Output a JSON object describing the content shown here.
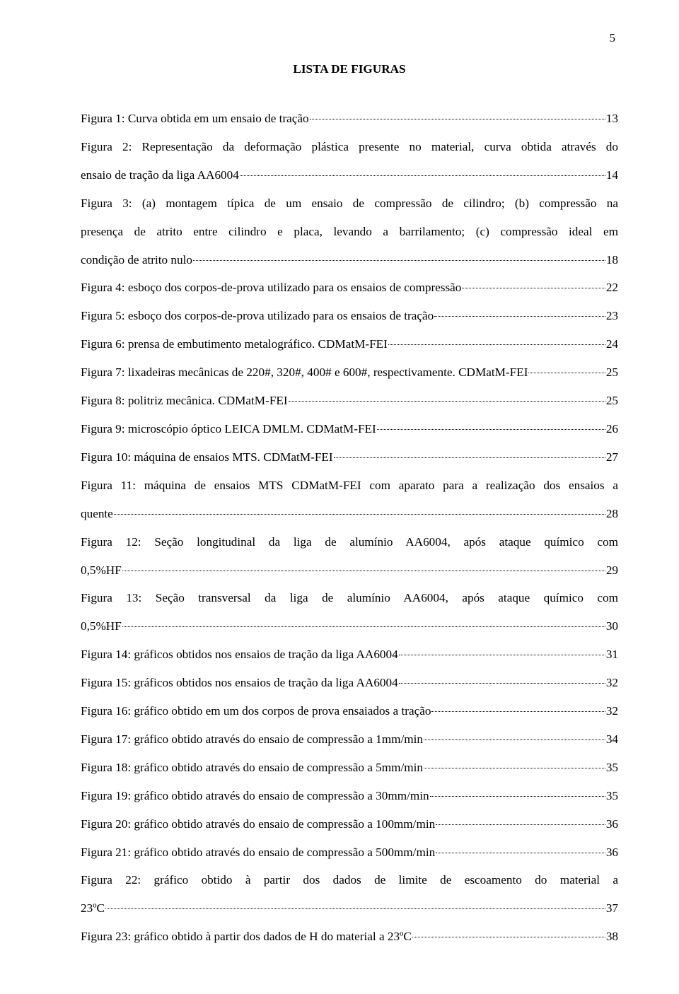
{
  "page_number": "5",
  "title": "LISTA DE FIGURAS",
  "entries": [
    {
      "pre": "Figura 1: Curva obtida em um ensaio de tração",
      "page": "13",
      "multi": false
    },
    {
      "pre_lines": [
        "Figura 2: Representação da deformação plástica presente no material, curva obtida através do"
      ],
      "last": "ensaio de tração da liga AA6004",
      "page": "14",
      "multi": true
    },
    {
      "pre_lines": [
        "Figura 3: (a) montagem típica de um ensaio de compressão de cilindro; (b) compressão na",
        "presença de atrito entre cilindro e placa, levando a barrilamento; (c) compressão ideal em"
      ],
      "last": "condição de atrito nulo",
      "page": "18",
      "multi": true
    },
    {
      "pre": "Figura 4: esboço dos corpos-de-prova utilizado para os ensaios de compressão",
      "page": "22",
      "multi": false
    },
    {
      "pre": "Figura 5: esboço dos corpos-de-prova utilizado para os ensaios de tração",
      "page": "23",
      "multi": false
    },
    {
      "pre": "Figura 6: prensa de embutimento metalográfico. CDMatM-FEI",
      "page": "24",
      "multi": false
    },
    {
      "pre": "Figura 7: lixadeiras mecânicas de 220#, 320#, 400# e 600#, respectivamente. CDMatM-FEI",
      "page": "25",
      "multi": false
    },
    {
      "pre": "Figura 8: politriz mecânica. CDMatM-FEI",
      "page": "25",
      "multi": false
    },
    {
      "pre": "Figura 9: microscópio óptico LEICA DMLM. CDMatM-FEI",
      "page": "26",
      "multi": false
    },
    {
      "pre": "Figura 10: máquina de ensaios MTS. CDMatM-FEI",
      "page": "27",
      "multi": false
    },
    {
      "pre_lines": [
        "Figura 11: máquina de ensaios MTS CDMatM-FEI com aparato para a realização dos ensaios a"
      ],
      "last": "quente",
      "page": "28",
      "multi": true
    },
    {
      "pre_lines": [
        "Figura 12: Seção longitudinal da liga de alumínio AA6004, após ataque químico com"
      ],
      "last": "0,5%HF",
      "page": "29",
      "multi": true
    },
    {
      "pre_lines": [
        "Figura 13: Seção transversal da liga de alumínio AA6004, após ataque químico com"
      ],
      "last": "0,5%HF",
      "page": "30",
      "multi": true
    },
    {
      "pre": "Figura 14: gráficos obtidos nos ensaios de tração da liga AA6004",
      "page": "31",
      "multi": false
    },
    {
      "pre": "Figura 15: gráficos obtidos nos ensaios de tração da liga AA6004",
      "page": "32",
      "multi": false
    },
    {
      "pre": "Figura 16: gráfico obtido em um dos corpos de prova ensaiados a tração",
      "page": "32",
      "multi": false
    },
    {
      "pre": "Figura 17: gráfico obtido através do ensaio de compressão a 1mm/min",
      "page": "34",
      "multi": false
    },
    {
      "pre": "Figura 18: gráfico obtido através do ensaio de compressão a 5mm/min",
      "page": "35",
      "multi": false
    },
    {
      "pre": "Figura 19: gráfico obtido através do ensaio de compressão a 30mm/min",
      "page": "35",
      "multi": false
    },
    {
      "pre": "Figura 20: gráfico obtido através do ensaio de compressão a 100mm/min",
      "page": "36",
      "multi": false
    },
    {
      "pre": "Figura 21: gráfico obtido através do ensaio de compressão a 500mm/min",
      "page": "36",
      "multi": false
    },
    {
      "pre_lines": [
        "Figura 22: gráfico obtido à partir dos dados de limite de escoamento do material a"
      ],
      "last": "23ºC",
      "page": "37",
      "multi": true
    },
    {
      "pre": "Figura 23: gráfico obtido à partir dos dados de H do material a 23ºC",
      "page": "38",
      "multi": false
    }
  ]
}
